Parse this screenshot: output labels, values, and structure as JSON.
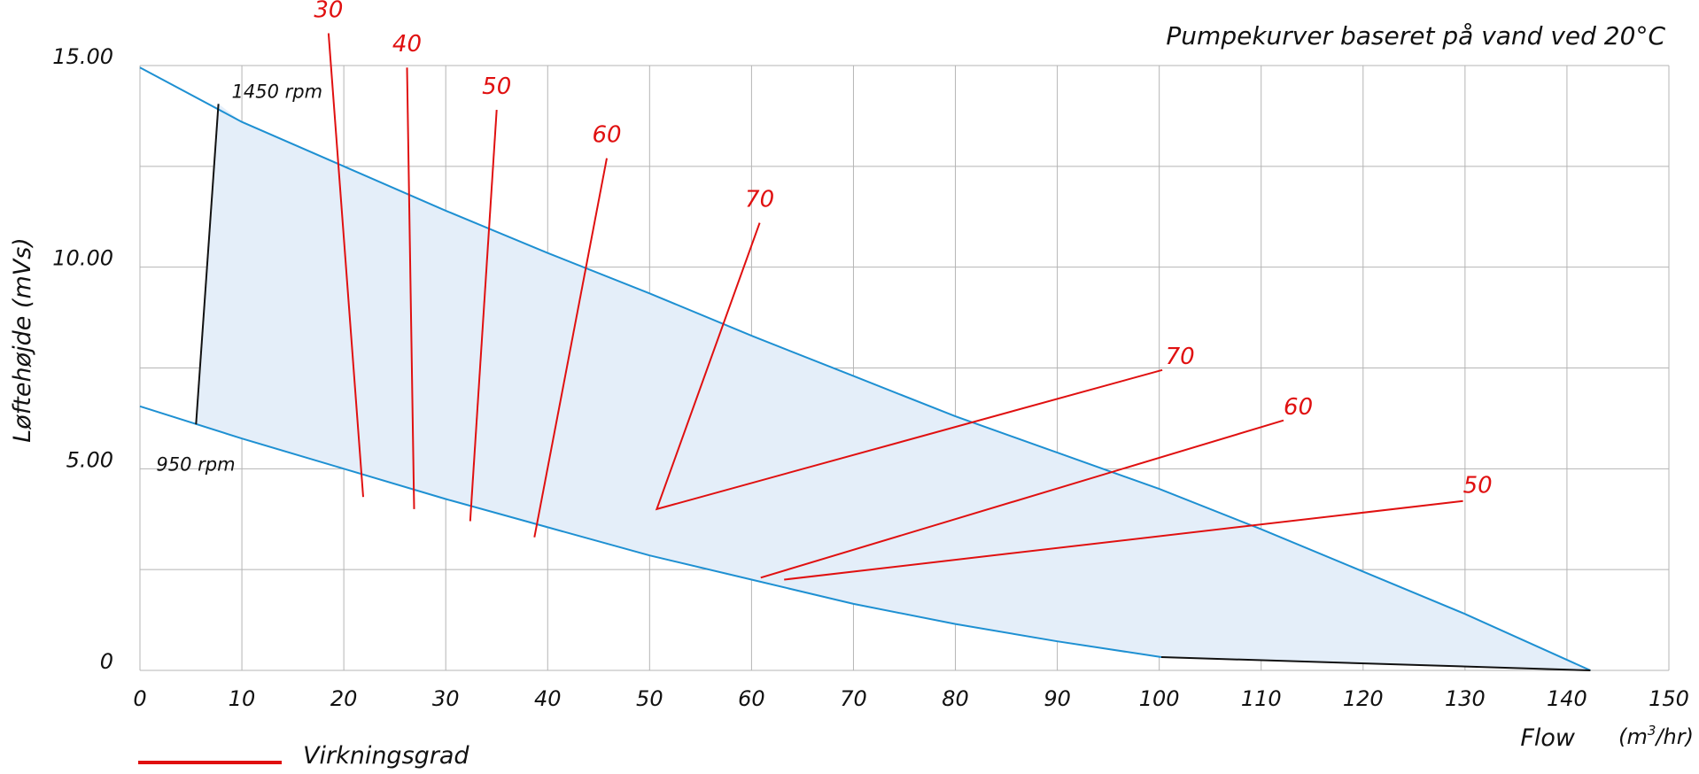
{
  "chart_data": {
    "type": "line",
    "title": "Pumpekurver baseret på vand ved  20°C",
    "xlabel": "Flow",
    "x_unit_prefix": "(m",
    "x_unit_exp": "3",
    "x_unit_suffix": "/hr)",
    "ylabel": "Løftehøjde (mVs)",
    "xlim": [
      0,
      150
    ],
    "ylim": [
      0,
      15
    ],
    "x_ticks": [
      0,
      10,
      20,
      30,
      40,
      50,
      60,
      70,
      80,
      90,
      100,
      110,
      120,
      130,
      140,
      150
    ],
    "x_tick_labels": [
      "0",
      "10",
      "20",
      "30",
      "40",
      "50",
      "60",
      "70",
      "80",
      "90",
      "100",
      "110",
      "120",
      "130",
      "140",
      "150"
    ],
    "y_ticks": [
      0,
      5,
      10,
      15
    ],
    "y_tick_labels": [
      "0",
      "5.00",
      "10.00",
      "15.00"
    ],
    "y_grid": [
      0,
      2.5,
      5,
      7.5,
      10,
      12.5,
      15
    ],
    "grid": true,
    "series": [
      {
        "name": "1450 rpm",
        "color": "#1e90d2",
        "x": [
          0,
          10,
          20,
          30,
          40,
          50,
          60,
          70,
          80,
          90,
          100,
          110,
          120,
          130,
          142.3
        ],
        "y": [
          14.95,
          13.6,
          12.5,
          11.4,
          10.35,
          9.35,
          8.3,
          7.3,
          6.3,
          5.4,
          4.5,
          3.5,
          2.45,
          1.4,
          0.0
        ]
      },
      {
        "name": "950 rpm",
        "color": "#1e90d2",
        "x": [
          0,
          10,
          20,
          30,
          40,
          50,
          60,
          70,
          80,
          90,
          100.2
        ],
        "y": [
          6.55,
          5.75,
          5.0,
          4.25,
          3.55,
          2.85,
          2.25,
          1.65,
          1.15,
          0.72,
          0.33
        ]
      }
    ],
    "boundary_lines": [
      {
        "name": "min-flow-boundary",
        "color": "#111111",
        "x": [
          7.7,
          5.5
        ],
        "y": [
          14.05,
          6.1
        ]
      },
      {
        "name": "max-flow-boundary",
        "color": "#111111",
        "x": [
          100.2,
          142.3
        ],
        "y": [
          0.33,
          0.0
        ]
      }
    ],
    "efficiency_lines": [
      {
        "label": "30",
        "x": [
          18.5,
          21.9
        ],
        "y": [
          15.8,
          4.3
        ],
        "label_x": 18.5,
        "label_y": 16.2,
        "anchor": "middle"
      },
      {
        "label": "40",
        "x": [
          26.2,
          26.9
        ],
        "y": [
          14.95,
          4.0
        ],
        "label_x": 26.2,
        "label_y": 15.35,
        "anchor": "middle"
      },
      {
        "label": "50",
        "x": [
          35.0,
          32.4
        ],
        "y": [
          13.9,
          3.7
        ],
        "label_x": 35.0,
        "label_y": 14.3,
        "anchor": "middle"
      },
      {
        "label": "60",
        "x": [
          45.8,
          38.7
        ],
        "y": [
          12.7,
          3.3
        ],
        "label_x": 45.8,
        "label_y": 13.1,
        "anchor": "middle"
      },
      {
        "label": "70",
        "x": [
          60.8,
          50.7,
          100.3
        ],
        "y": [
          11.1,
          4.0,
          7.45
        ],
        "label_x": 60.8,
        "label_y": 11.5,
        "anchor": "middle"
      },
      {
        "label": "70",
        "x": [],
        "y": [],
        "label_x": 100.6,
        "label_y": 7.6,
        "anchor": "start"
      },
      {
        "label": "60",
        "x": [
          60.9,
          112.2
        ],
        "y": [
          2.3,
          6.2
        ],
        "label_x": 112.2,
        "label_y": 6.35,
        "anchor": "start"
      },
      {
        "label": "50",
        "x": [
          63.2,
          129.8
        ],
        "y": [
          2.25,
          4.2
        ],
        "label_x": 129.8,
        "label_y": 4.4,
        "anchor": "start"
      }
    ],
    "rpm_labels": [
      {
        "text": "1450 rpm",
        "x": 9.0,
        "y": 14.2
      },
      {
        "text": "950 rpm",
        "x": 1.6,
        "y": 4.95
      }
    ],
    "legend": {
      "label": "Virkningsgrad",
      "color": "#e01010",
      "position": "bottom-left"
    },
    "efficiency_color": "#e01010",
    "fill_color": "#e4eef9"
  }
}
